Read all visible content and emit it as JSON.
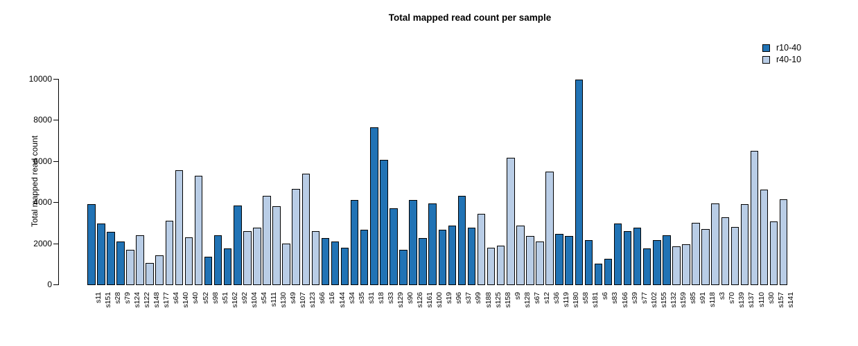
{
  "title": "Total mapped read count per sample",
  "chart_data": {
    "type": "bar",
    "title": "Total mapped read count per sample",
    "xlabel": "",
    "ylabel": "Total mapped read count",
    "ylim": [
      0,
      10000
    ],
    "yticks": [
      0,
      2000,
      4000,
      6000,
      8000,
      10000
    ],
    "grid": false,
    "legend_position": "top-right",
    "bar_border_color": "#000000",
    "series": [
      {
        "name": "r10-40",
        "color": "#2173b5"
      },
      {
        "name": "r40-10",
        "color": "#b9cde6"
      }
    ],
    "bars": [
      {
        "label": "s11",
        "value": 3900,
        "series": "r10-40"
      },
      {
        "label": "s151",
        "value": 2950,
        "series": "r10-40"
      },
      {
        "label": "s28",
        "value": 2550,
        "series": "r10-40"
      },
      {
        "label": "s79",
        "value": 2100,
        "series": "r10-40"
      },
      {
        "label": "s124",
        "value": 1700,
        "series": "r40-10"
      },
      {
        "label": "s122",
        "value": 2400,
        "series": "r40-10"
      },
      {
        "label": "s148",
        "value": 1050,
        "series": "r40-10"
      },
      {
        "label": "s177",
        "value": 1400,
        "series": "r40-10"
      },
      {
        "label": "s64",
        "value": 3100,
        "series": "r40-10"
      },
      {
        "label": "s140",
        "value": 5550,
        "series": "r40-10"
      },
      {
        "label": "s40",
        "value": 2300,
        "series": "r40-10"
      },
      {
        "label": "s52",
        "value": 5300,
        "series": "r40-10"
      },
      {
        "label": "s98",
        "value": 1350,
        "series": "r10-40"
      },
      {
        "label": "s51",
        "value": 2400,
        "series": "r10-40"
      },
      {
        "label": "s162",
        "value": 1750,
        "series": "r10-40"
      },
      {
        "label": "s92",
        "value": 3850,
        "series": "r10-40"
      },
      {
        "label": "s104",
        "value": 2600,
        "series": "r40-10"
      },
      {
        "label": "s54",
        "value": 2750,
        "series": "r40-10"
      },
      {
        "label": "s111",
        "value": 4300,
        "series": "r40-10"
      },
      {
        "label": "s130",
        "value": 3800,
        "series": "r40-10"
      },
      {
        "label": "s49",
        "value": 2000,
        "series": "r40-10"
      },
      {
        "label": "s107",
        "value": 4650,
        "series": "r40-10"
      },
      {
        "label": "s123",
        "value": 5400,
        "series": "r40-10"
      },
      {
        "label": "s66",
        "value": 2600,
        "series": "r40-10"
      },
      {
        "label": "s16",
        "value": 2250,
        "series": "r10-40"
      },
      {
        "label": "s144",
        "value": 2100,
        "series": "r10-40"
      },
      {
        "label": "s34",
        "value": 1800,
        "series": "r10-40"
      },
      {
        "label": "s35",
        "value": 4100,
        "series": "r10-40"
      },
      {
        "label": "s31",
        "value": 2650,
        "series": "r10-40"
      },
      {
        "label": "s18",
        "value": 7650,
        "series": "r10-40"
      },
      {
        "label": "s33",
        "value": 6050,
        "series": "r10-40"
      },
      {
        "label": "s129",
        "value": 3700,
        "series": "r10-40"
      },
      {
        "label": "s90",
        "value": 1700,
        "series": "r10-40"
      },
      {
        "label": "s126",
        "value": 4100,
        "series": "r10-40"
      },
      {
        "label": "s161",
        "value": 2250,
        "series": "r10-40"
      },
      {
        "label": "s100",
        "value": 3950,
        "series": "r10-40"
      },
      {
        "label": "s19",
        "value": 2650,
        "series": "r10-40"
      },
      {
        "label": "s96",
        "value": 2850,
        "series": "r10-40"
      },
      {
        "label": "s37",
        "value": 4300,
        "series": "r10-40"
      },
      {
        "label": "s99",
        "value": 2750,
        "series": "r10-40"
      },
      {
        "label": "s188",
        "value": 3450,
        "series": "r40-10"
      },
      {
        "label": "s125",
        "value": 1800,
        "series": "r40-10"
      },
      {
        "label": "s158",
        "value": 1900,
        "series": "r40-10"
      },
      {
        "label": "s9",
        "value": 6150,
        "series": "r40-10"
      },
      {
        "label": "s128",
        "value": 2850,
        "series": "r40-10"
      },
      {
        "label": "s67",
        "value": 2350,
        "series": "r40-10"
      },
      {
        "label": "s12",
        "value": 2100,
        "series": "r40-10"
      },
      {
        "label": "s36",
        "value": 5500,
        "series": "r40-10"
      },
      {
        "label": "s119",
        "value": 2450,
        "series": "r10-40"
      },
      {
        "label": "s180",
        "value": 2350,
        "series": "r10-40"
      },
      {
        "label": "s58",
        "value": 9950,
        "series": "r10-40"
      },
      {
        "label": "s181",
        "value": 2150,
        "series": "r10-40"
      },
      {
        "label": "s6",
        "value": 1000,
        "series": "r10-40"
      },
      {
        "label": "s83",
        "value": 1250,
        "series": "r10-40"
      },
      {
        "label": "s166",
        "value": 2950,
        "series": "r10-40"
      },
      {
        "label": "s39",
        "value": 2600,
        "series": "r10-40"
      },
      {
        "label": "s77",
        "value": 2750,
        "series": "r10-40"
      },
      {
        "label": "s102",
        "value": 1750,
        "series": "r10-40"
      },
      {
        "label": "s155",
        "value": 2150,
        "series": "r10-40"
      },
      {
        "label": "s132",
        "value": 2400,
        "series": "r10-40"
      },
      {
        "label": "s159",
        "value": 1850,
        "series": "r40-10"
      },
      {
        "label": "s85",
        "value": 1950,
        "series": "r40-10"
      },
      {
        "label": "s91",
        "value": 3000,
        "series": "r40-10"
      },
      {
        "label": "s118",
        "value": 2700,
        "series": "r40-10"
      },
      {
        "label": "s3",
        "value": 3950,
        "series": "r40-10"
      },
      {
        "label": "s70",
        "value": 3250,
        "series": "r40-10"
      },
      {
        "label": "s139",
        "value": 2800,
        "series": "r40-10"
      },
      {
        "label": "s137",
        "value": 3900,
        "series": "r40-10"
      },
      {
        "label": "s110",
        "value": 6500,
        "series": "r40-10"
      },
      {
        "label": "s30",
        "value": 4600,
        "series": "r40-10"
      },
      {
        "label": "s157",
        "value": 3050,
        "series": "r40-10"
      },
      {
        "label": "s141",
        "value": 4150,
        "series": "r40-10"
      }
    ]
  }
}
